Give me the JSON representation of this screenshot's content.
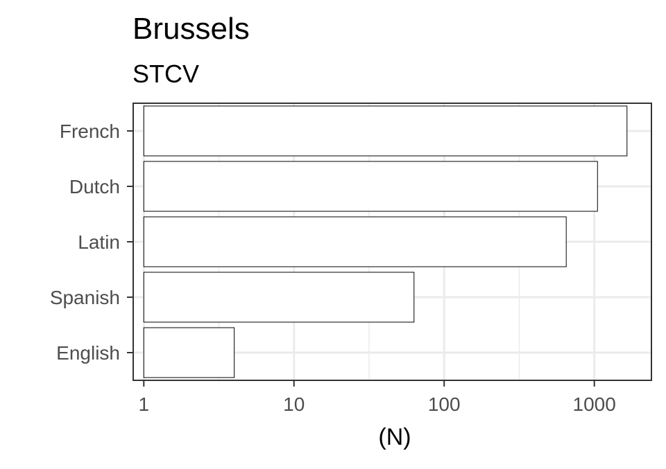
{
  "chart_data": {
    "type": "bar",
    "orientation": "horizontal",
    "title": "Brussels",
    "subtitle": "STCV",
    "xlabel": "(N)",
    "ylabel": "",
    "x_scale": "log10",
    "xlim": [
      0.85,
      2400
    ],
    "x_ticks": [
      1,
      10,
      100,
      1000
    ],
    "x_tick_labels": [
      "1",
      "10",
      "100",
      "1000"
    ],
    "categories": [
      "French",
      "Dutch",
      "Latin",
      "Spanish",
      "English"
    ],
    "values": [
      1650,
      1050,
      650,
      63,
      4
    ],
    "bar_fill": "#ffffff",
    "bar_stroke": "#000000",
    "grid": true,
    "grid_color": "#ebebeb",
    "panel_border_color": "#333333",
    "legend": "none"
  }
}
